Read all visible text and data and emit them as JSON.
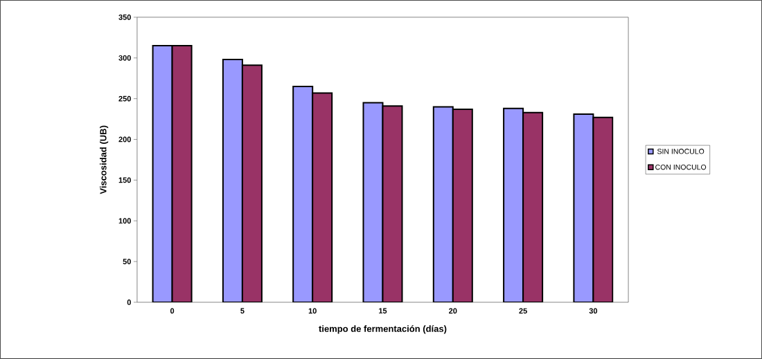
{
  "chart_data": {
    "type": "bar",
    "xlabel": "tiempo de fermentación (días)",
    "ylabel": "Viscosidad (UB)",
    "categories": [
      "0",
      "5",
      "10",
      "15",
      "20",
      "25",
      "30"
    ],
    "series": [
      {
        "name": "SIN INOCULO",
        "color": "#9999ff",
        "values": [
          315,
          298,
          265,
          245,
          240,
          238,
          231
        ]
      },
      {
        "name": "CON INOCULO",
        "color": "#993366",
        "values": [
          315,
          291,
          257,
          241,
          237,
          233,
          227
        ]
      }
    ],
    "ylim": [
      0,
      350
    ],
    "yticks": [
      0,
      50,
      100,
      150,
      200,
      250,
      300,
      350
    ],
    "grid": false,
    "legend": "right"
  }
}
